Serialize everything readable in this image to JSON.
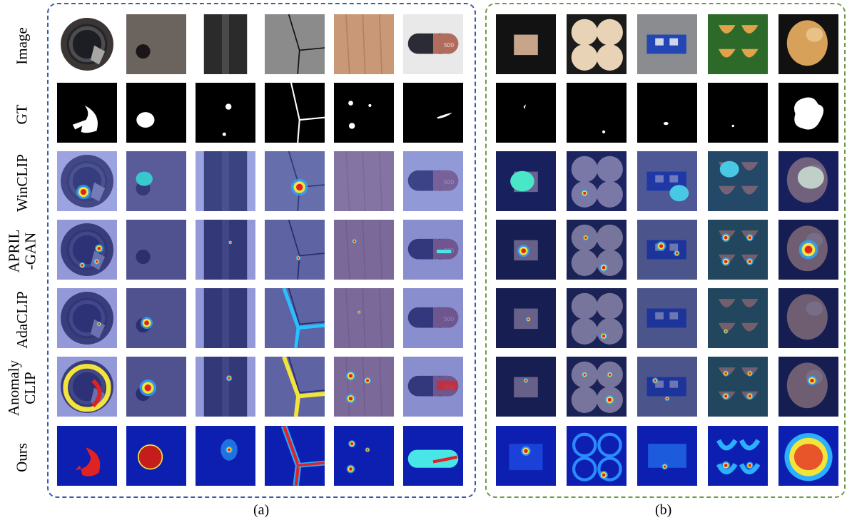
{
  "figure": {
    "row_labels": [
      "Image",
      "GT",
      "WinCLIP",
      "APRIL\n-GAN",
      "AdaCLIP",
      "Anomaly\nCLIP",
      "Ours"
    ],
    "caption_a": "(a)",
    "caption_b": "(b)",
    "tile_500_text": "500"
  },
  "colors": {
    "panel_a_border": "#3a5ba8",
    "panel_b_border": "#6f9a45",
    "heatmap_low": "#1b2fa8",
    "heatmap_high": "#d41414"
  }
}
